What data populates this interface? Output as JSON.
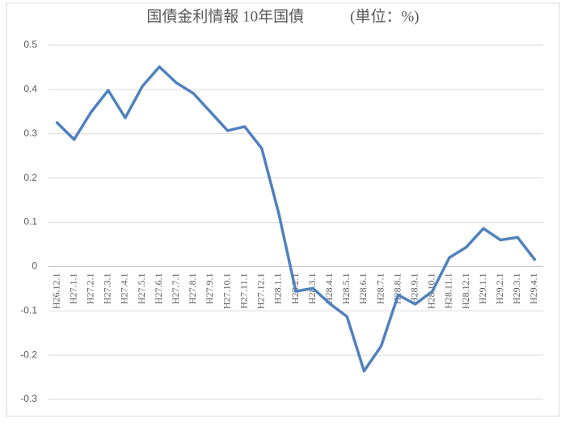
{
  "chart_data": {
    "type": "line",
    "title": "国債金利情報 10年国債　　　(単位：%)",
    "categories": [
      "H26.12.1",
      "H27.1.1",
      "H27.2.1",
      "H27.3.1",
      "H27.4.1",
      "H27.5.1",
      "H27.6.1",
      "H27.7.1",
      "H27.8.1",
      "H27.9.1",
      "H27.10.1",
      "H27.11.1",
      "H27.12.1",
      "H28.1.1",
      "H28.2.1",
      "H28.3.1",
      "H28.4.1",
      "H28.5.1",
      "H28.6.1",
      "H28.7.1",
      "H28.8.1",
      "H28.9.1",
      "H28.10.1",
      "H28.11.1",
      "H28.12.1",
      "H29.1.1",
      "H29.2.1",
      "H29.3.1",
      "H29.4.1"
    ],
    "values": [
      0.325,
      0.287,
      0.349,
      0.398,
      0.336,
      0.407,
      0.451,
      0.415,
      0.391,
      0.349,
      0.307,
      0.316,
      0.267,
      0.12,
      -0.056,
      -0.049,
      -0.084,
      -0.113,
      -0.236,
      -0.18,
      -0.064,
      -0.085,
      -0.056,
      0.02,
      0.044,
      0.086,
      0.06,
      0.066,
      0.016
    ],
    "color": "#4f81bd",
    "ylim": [
      -0.3,
      0.5
    ],
    "yticks": [
      -0.3,
      -0.2,
      -0.1,
      0,
      0.1,
      0.2,
      0.3,
      0.4,
      0.5
    ],
    "grid": true
  }
}
